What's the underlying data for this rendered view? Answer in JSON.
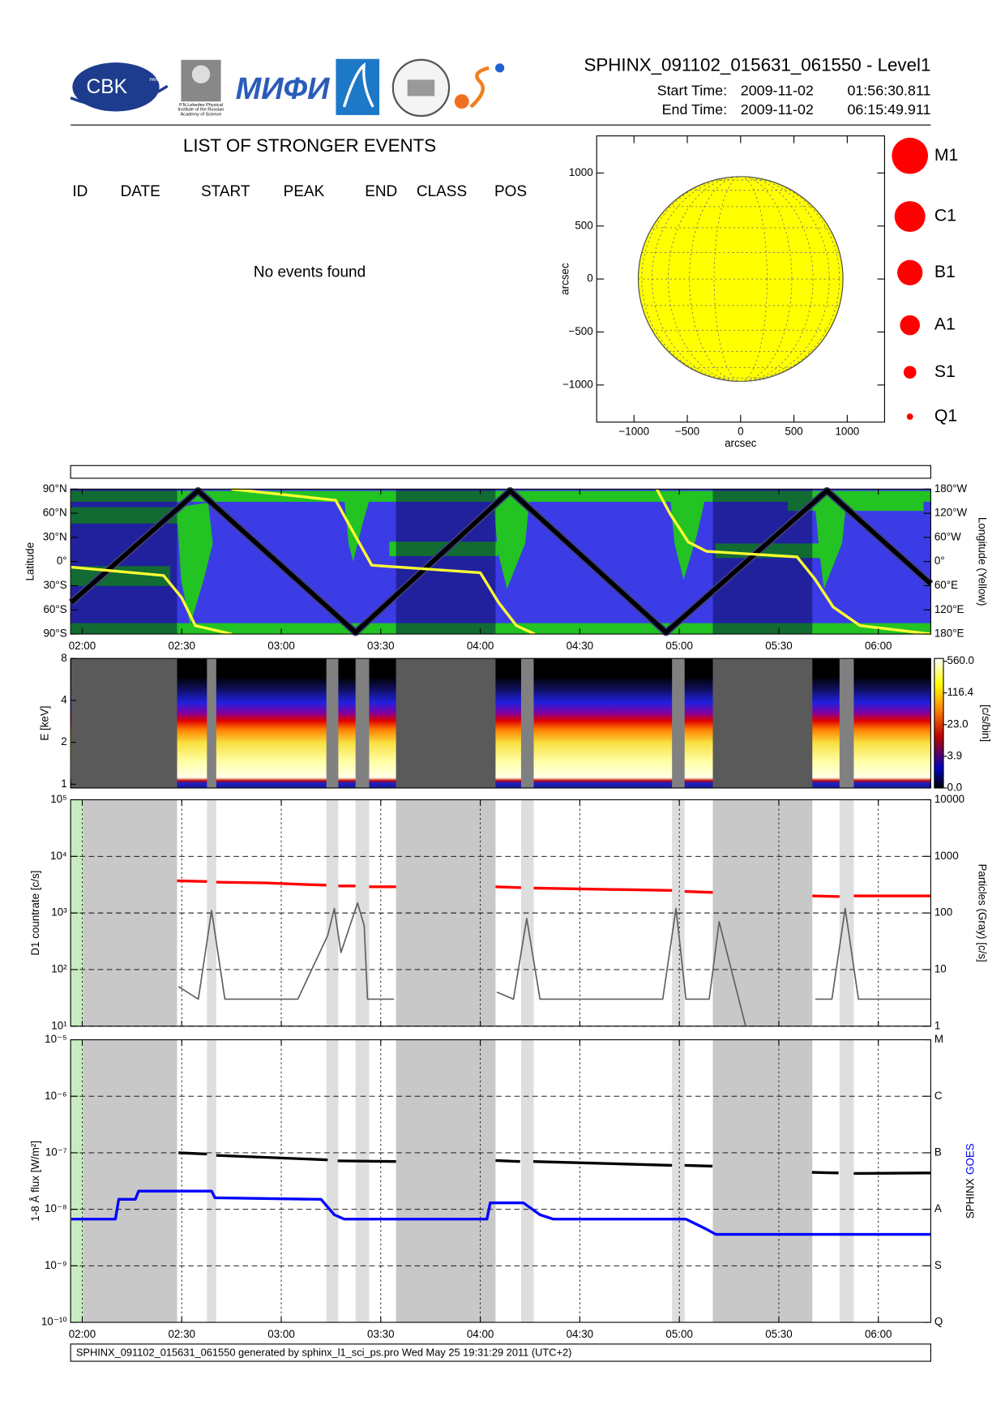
{
  "header": {
    "title": "SPHINX_091102_015631_061550 - Level1",
    "start_label": "Start Time:",
    "start_date": "2009-11-02",
    "start_time": "01:56:30.811",
    "end_label": "End Time:",
    "end_date": "2009-11-02",
    "end_time": "06:15:49.911",
    "logo_cbk": "CBK",
    "logo_pan": "PAN",
    "logo_lebedev": [
      "P.N.Lebedev Physical",
      "Institute of the Russian",
      "Academy of Science"
    ],
    "logo_mifi": "МИФИ"
  },
  "events": {
    "title": "LIST OF STRONGER EVENTS",
    "columns": [
      "ID",
      "DATE",
      "START",
      "PEAK",
      "END",
      "CLASS",
      "POS"
    ],
    "message": "No events found"
  },
  "chart_data": [
    {
      "type": "disk",
      "xlabel": "arcsec",
      "ylabel": "arcsec",
      "xlim": [
        -1350,
        1350
      ],
      "ylim": [
        -1350,
        1350
      ],
      "xticks": [
        {
          "value": -1000,
          "label": "−1000"
        },
        {
          "value": -500,
          "label": "−500"
        },
        0,
        500,
        1000
      ],
      "yticks": [
        {
          "value": -1000,
          "label": "−1000"
        },
        {
          "value": -500,
          "label": "−500"
        },
        0,
        500,
        1000
      ],
      "radius": 960,
      "color": "#ffff00",
      "legend": [
        "M1",
        "C1",
        "B1",
        "A1",
        "S1",
        "Q1"
      ],
      "legend_color": "#ff0000"
    },
    {
      "type": "map",
      "ylabel": "Latitude",
      "y2label": "Longitude (Yellow)",
      "xlim": [
        116.5,
        375.8
      ],
      "xticks": [
        {
          "value": 120,
          "label": "02:00"
        },
        {
          "value": 150,
          "label": "02:30"
        },
        {
          "value": 180,
          "label": "03:00"
        },
        {
          "value": 210,
          "label": "03:30"
        },
        {
          "value": 240,
          "label": "04:00"
        },
        {
          "value": 270,
          "label": "04:30"
        },
        {
          "value": 300,
          "label": "05:00"
        },
        {
          "value": 330,
          "label": "05:30"
        },
        {
          "value": 360,
          "label": "06:00"
        }
      ],
      "ylim": [
        -90,
        90
      ],
      "yticks": [
        {
          "value": 90,
          "label": "90°N"
        },
        {
          "value": 60,
          "label": "60°N"
        },
        {
          "value": 30,
          "label": "30°N"
        },
        {
          "value": 0,
          "label": "0°"
        },
        {
          "value": -30,
          "label": "30°S"
        },
        {
          "value": -60,
          "label": "60°S"
        },
        {
          "value": -90,
          "label": "90°S"
        }
      ],
      "y2lim": [
        -180,
        180
      ],
      "y2ticks": [
        {
          "value": 180,
          "label": "180°W"
        },
        {
          "value": 120,
          "label": "120°W"
        },
        {
          "value": 60,
          "label": "60°W"
        },
        {
          "value": 0,
          "label": "0°"
        },
        {
          "value": -60,
          "label": "60°E"
        },
        {
          "value": -120,
          "label": "120°E"
        },
        {
          "value": -180,
          "label": "180°E"
        }
      ],
      "night": [
        [
          116.7,
          148.6
        ],
        [
          214.6,
          244.6
        ],
        [
          310.1,
          340.1
        ]
      ],
      "series": [
        {
          "color": "#000000",
          "x": [
            116.7,
            154.9,
            202.4,
            249.0,
            296.0,
            344.5,
            375.8
          ],
          "values": [
            -50.8,
            88,
            -88,
            88,
            -88,
            88,
            -27.7
          ]
        },
        {
          "color": "#ffff33",
          "axis": "y2",
          "x": [
            116.7,
            144.5,
            150,
            154.1,
            165,
            null,
            165,
            196.4,
            201.8,
            207.3,
            240,
            245.5,
            250.9,
            256.4,
            null,
            293.2,
            297.3,
            302.7,
            308.2,
            335.5,
            340.9,
            346.4,
            354.5,
            375.8
          ],
          "values": [
            -13.8,
            -34.6,
            -90,
            -159.2,
            -180,
            null,
            180,
            152.3,
            71.5,
            -9.2,
            -27.7,
            -101.5,
            -159.2,
            -180,
            null,
            180,
            117.7,
            48.5,
            25.4,
            11.5,
            -43.8,
            -113,
            -159.2,
            -180
          ]
        }
      ]
    },
    {
      "type": "spectrogram",
      "ylabel": "E [keV]",
      "log": true,
      "xlim": [
        116.5,
        375.8
      ],
      "ylim": [
        0.94,
        8
      ],
      "yticks": [
        1,
        2,
        4,
        8
      ],
      "shade_dark": [
        [
          116.7,
          148.6
        ],
        [
          214.6,
          244.6
        ],
        [
          310.1,
          340.1
        ]
      ],
      "shade_light": [
        [
          157.6,
          160.4
        ],
        [
          193.6,
          197.2
        ],
        [
          202.4,
          206.5
        ],
        [
          252.3,
          256.1
        ],
        [
          297.8,
          301.6
        ],
        [
          348.3,
          352.6
        ]
      ],
      "colorbar": {
        "label": "[c/s/bin]",
        "ticks": [
          {
            "value": 560,
            "label": "560.0"
          },
          {
            "value": 116.4,
            "label": "116.4"
          },
          {
            "value": 23,
            "label": "23.0"
          },
          {
            "value": 3.9,
            "label": "3.9"
          },
          {
            "value": 0,
            "label": "0.0"
          }
        ]
      }
    },
    {
      "type": "line",
      "ylabel": "D1 countrate [c/s]",
      "y2label": "Particles (Gray) [c/s]",
      "log": true,
      "grid": true,
      "xlim": [
        116.5,
        375.8
      ],
      "xticks": [
        120,
        150,
        180,
        210,
        240,
        270,
        300,
        330,
        360
      ],
      "ylim": [
        10,
        100000
      ],
      "yticks": [
        {
          "value": 100000,
          "label": "10⁵"
        },
        {
          "value": 10000,
          "label": "10⁴"
        },
        {
          "value": 1000,
          "label": "10³"
        },
        {
          "value": 100,
          "label": "10²"
        },
        {
          "value": 10,
          "label": "10¹"
        }
      ],
      "y2lim": [
        1,
        10000
      ],
      "y2ticks": [
        10000,
        1000,
        100,
        10,
        1
      ],
      "shade_dark": [
        [
          116.7,
          148.6
        ],
        [
          214.6,
          244.6
        ],
        [
          310.1,
          340.1
        ]
      ],
      "shade_light": [
        [
          157.6,
          160.4
        ],
        [
          193.6,
          197.2
        ],
        [
          202.4,
          206.5
        ],
        [
          252.3,
          256.1
        ],
        [
          297.8,
          301.6
        ],
        [
          348.3,
          352.6
        ]
      ],
      "series": [
        {
          "color": "#ff0000",
          "x": [
            148.6,
            157.6,
            null,
            160.4,
            175,
            186,
            193.6,
            null,
            197.2,
            202.4,
            null,
            206.5,
            214.6,
            null,
            244.6,
            252.3,
            null,
            256.1,
            280,
            297.8,
            null,
            301.6,
            310.1,
            null,
            340.1,
            348.3,
            null,
            352.6,
            375.8
          ],
          "values": [
            3700,
            3600,
            null,
            3500,
            3400,
            3200,
            3100,
            null,
            3000,
            3000,
            null,
            2900,
            2900,
            null,
            2900,
            2800,
            null,
            2750,
            2600,
            2500,
            null,
            2400,
            2300,
            null,
            2000,
            1950,
            null,
            2000,
            2000
          ]
        },
        {
          "color": "#606060",
          "axis": "y2",
          "x": [
            149,
            155,
            159,
            163,
            185,
            194,
            196,
            198,
            203,
            205,
            206,
            214,
            null,
            245,
            250,
            254,
            258,
            295,
            299,
            302,
            309,
            312,
            320,
            null,
            341,
            346,
            350,
            354,
            375.8
          ],
          "values": [
            5,
            3,
            110,
            3,
            3,
            40,
            120,
            20,
            150,
            60,
            3,
            3,
            null,
            4,
            3,
            80,
            3,
            3,
            120,
            3,
            3,
            70,
            1,
            null,
            3,
            3,
            120,
            3,
            3
          ]
        }
      ]
    },
    {
      "type": "line",
      "ylabel": "1-8 Å flux [W/m²]",
      "y2labels": [
        {
          "text": "SPHINX",
          "color": "#000000"
        },
        {
          "text": "GOES",
          "color": "#0000ff"
        }
      ],
      "log": true,
      "grid": true,
      "xlim": [
        116.5,
        375.8
      ],
      "xticks": [
        {
          "value": 120,
          "label": "02:00"
        },
        {
          "value": 150,
          "label": "02:30"
        },
        {
          "value": 180,
          "label": "03:00"
        },
        {
          "value": 210,
          "label": "03:30"
        },
        {
          "value": 240,
          "label": "04:00"
        },
        {
          "value": 270,
          "label": "04:30"
        },
        {
          "value": 300,
          "label": "05:00"
        },
        {
          "value": 330,
          "label": "05:30"
        },
        {
          "value": 360,
          "label": "06:00"
        }
      ],
      "ylim": [
        1e-10,
        1e-05
      ],
      "yticks": [
        {
          "value": 1e-05,
          "label": "10⁻⁵"
        },
        {
          "value": 1e-06,
          "label": "10⁻⁶"
        },
        {
          "value": 1e-07,
          "label": "10⁻⁷"
        },
        {
          "value": 1e-08,
          "label": "10⁻⁸"
        },
        {
          "value": 1e-09,
          "label": "10⁻⁹"
        },
        {
          "value": 1e-10,
          "label": "10⁻¹⁰"
        }
      ],
      "y2lim": [
        1e-10,
        1e-05
      ],
      "y2ticks": [
        {
          "value": 1e-05,
          "label": "M"
        },
        {
          "value": 1e-06,
          "label": "C"
        },
        {
          "value": 1e-07,
          "label": "B"
        },
        {
          "value": 1e-08,
          "label": "A"
        },
        {
          "value": 1e-09,
          "label": "S"
        },
        {
          "value": 1e-10,
          "label": "Q"
        }
      ],
      "shade_dark": [
        [
          116.7,
          148.6
        ],
        [
          214.6,
          244.6
        ],
        [
          310.1,
          340.1
        ]
      ],
      "shade_light": [
        [
          157.6,
          160.4
        ],
        [
          193.6,
          197.2
        ],
        [
          202.4,
          206.5
        ],
        [
          252.3,
          256.1
        ],
        [
          297.8,
          301.6
        ],
        [
          348.3,
          352.6
        ]
      ],
      "series": [
        {
          "color": "#000000",
          "x": [
            149,
            157.6,
            null,
            160.4,
            194,
            null,
            197,
            214.6,
            null,
            244.6,
            252,
            null,
            256,
            297.8,
            null,
            301.6,
            310,
            null,
            340,
            348,
            null,
            352.6,
            375.8
          ],
          "values": [
            1e-07,
            9.5e-08,
            null,
            9e-08,
            7.5e-08,
            null,
            7.2e-08,
            7e-08,
            null,
            7.3e-08,
            7e-08,
            null,
            7e-08,
            6e-08,
            null,
            6e-08,
            5.8e-08,
            null,
            4.5e-08,
            4.4e-08,
            null,
            4.3e-08,
            4.4e-08
          ]
        },
        {
          "color": "#0000ff",
          "x": [
            116.7,
            130,
            131,
            136,
            137,
            159,
            160,
            192,
            196,
            199,
            242,
            243,
            253,
            258,
            262,
            302,
            308,
            311,
            375.8
          ],
          "values": [
            6.7e-09,
            6.7e-09,
            1.5e-08,
            1.5e-08,
            2.1e-08,
            2.1e-08,
            1.6e-08,
            1.5e-08,
            8e-09,
            6.7e-09,
            6.7e-09,
            1.3e-08,
            1.3e-08,
            8e-09,
            6.7e-09,
            6.7e-09,
            4.5e-09,
            3.6e-09,
            3.6e-09
          ]
        }
      ]
    }
  ],
  "footer": "SPHINX_091102_015631_061550 generated by sphinx_l1_sci_ps.pro Wed May 25 19:31:29 2011 (UTC+2)"
}
